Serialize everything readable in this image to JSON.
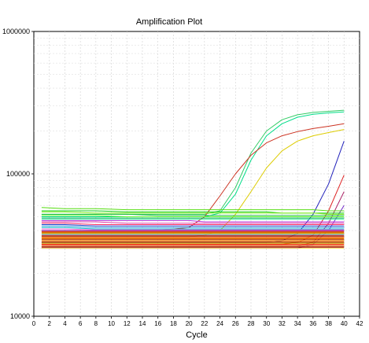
{
  "chart_data": {
    "type": "line",
    "title": "Amplification Plot",
    "xlabel": "Cycle",
    "ylabel": "",
    "x_ticks": [
      0,
      2,
      4,
      6,
      8,
      10,
      12,
      14,
      16,
      18,
      20,
      22,
      24,
      26,
      28,
      30,
      32,
      34,
      36,
      38,
      40,
      42
    ],
    "y_ticks": [
      10000,
      100000,
      1000000
    ],
    "y_tick_labels": [
      "10000",
      "100000",
      "1000000"
    ],
    "xlim": [
      0,
      42
    ],
    "ylim": [
      10000,
      1000000
    ],
    "y_scale": "log",
    "grid": true,
    "x": [
      1,
      4,
      8,
      12,
      16,
      20,
      22,
      24,
      26,
      28,
      30,
      32,
      34,
      36,
      38,
      40
    ],
    "series": [
      {
        "color": "#33cc66",
        "values": [
          52000,
          52000,
          52000,
          52000,
          52000,
          52000,
          52000,
          55000,
          80000,
          140000,
          200000,
          240000,
          260000,
          270000,
          275000,
          280000
        ]
      },
      {
        "color": "#00dd88",
        "values": [
          50000,
          50000,
          50000,
          50000,
          50000,
          50000,
          50000,
          53000,
          72000,
          125000,
          185000,
          225000,
          250000,
          262000,
          268000,
          272000
        ]
      },
      {
        "color": "#cc3322",
        "values": [
          40000,
          40000,
          40000,
          40000,
          40000,
          42000,
          50000,
          70000,
          100000,
          135000,
          165000,
          185000,
          198000,
          208000,
          216000,
          225000
        ]
      },
      {
        "color": "#ddcc00",
        "values": [
          36000,
          36000,
          36000,
          36000,
          36000,
          36000,
          37000,
          40000,
          52000,
          75000,
          110000,
          145000,
          170000,
          185000,
          195000,
          205000
        ]
      },
      {
        "color": "#2222bb",
        "values": [
          33000,
          33000,
          33000,
          33000,
          33000,
          33000,
          33000,
          33000,
          33000,
          33000,
          33000,
          34000,
          38000,
          52000,
          85000,
          170000
        ]
      },
      {
        "color": "#dd2222",
        "values": [
          32000,
          32000,
          32000,
          32000,
          32000,
          32000,
          32000,
          32000,
          32000,
          32000,
          32000,
          32000,
          33000,
          37000,
          55000,
          98000
        ]
      },
      {
        "color": "#aa2266",
        "values": [
          31000,
          31000,
          31000,
          31000,
          31000,
          31000,
          31000,
          31000,
          31000,
          31000,
          31000,
          31000,
          31000,
          33000,
          45000,
          75000
        ]
      },
      {
        "color": "#7733cc",
        "values": [
          30000,
          30000,
          30000,
          30000,
          30000,
          30000,
          30000,
          30000,
          30000,
          30000,
          30000,
          30000,
          30000,
          32000,
          40000,
          60000
        ]
      },
      {
        "color": "#55dd11",
        "values": [
          58000,
          57000,
          57000,
          56000,
          56000,
          56000,
          56000,
          56000,
          56000,
          56000,
          56000,
          56000,
          56000,
          56000,
          55000,
          55000
        ]
      },
      {
        "color": "#11cc11",
        "values": [
          55000,
          55000,
          55000,
          54000,
          54000,
          54000,
          54000,
          54000,
          54000,
          54000,
          54000,
          53000,
          53000,
          53000,
          53000,
          53000
        ]
      },
      {
        "color": "#88ee22",
        "values": [
          54000,
          54000,
          53000,
          53000,
          53000,
          53000,
          53000,
          53000,
          53000,
          53000,
          53000,
          53000,
          53000,
          53000,
          52000,
          52000
        ]
      },
      {
        "color": "#22bb44",
        "values": [
          52000,
          52000,
          52000,
          52000,
          51000,
          51000,
          51000,
          51000,
          51000,
          51000,
          51000,
          51000,
          51000,
          51000,
          51000,
          51000
        ]
      },
      {
        "color": "#66ff33",
        "values": [
          51000,
          51000,
          51000,
          50000,
          50000,
          50000,
          50000,
          50000,
          50000,
          50000,
          50000,
          50000,
          50000,
          50000,
          50000,
          50000
        ]
      },
      {
        "color": "#00aa55",
        "values": [
          49000,
          49000,
          49000,
          49000,
          49000,
          49000,
          49000,
          49000,
          49000,
          49000,
          49000,
          49000,
          49000,
          49000,
          49000,
          49000
        ]
      },
      {
        "color": "#33ee99",
        "values": [
          48000,
          48000,
          48000,
          48000,
          48000,
          48000,
          48000,
          48000,
          48000,
          48000,
          48000,
          48000,
          48000,
          48000,
          48000,
          48000
        ]
      },
      {
        "color": "#bb33dd",
        "values": [
          47000,
          47000,
          47000,
          47000,
          47000,
          47000,
          46000,
          46000,
          46000,
          46000,
          46000,
          46000,
          46000,
          46000,
          46000,
          46000
        ]
      },
      {
        "color": "#dd44aa",
        "values": [
          46000,
          46000,
          46000,
          45000,
          45000,
          45000,
          45000,
          45000,
          45000,
          45000,
          45000,
          45000,
          45000,
          45000,
          45000,
          45000
        ]
      },
      {
        "color": "#ff3366",
        "values": [
          45000,
          45000,
          44000,
          44000,
          44000,
          44000,
          44000,
          44000,
          44000,
          44000,
          44000,
          44000,
          44000,
          44000,
          44000,
          44000
        ]
      },
      {
        "color": "#2244cc",
        "values": [
          44000,
          44000,
          43000,
          43000,
          43000,
          43000,
          43000,
          43000,
          43000,
          43000,
          43000,
          43000,
          43000,
          43000,
          43000,
          43000
        ]
      },
      {
        "color": "#3399dd",
        "values": [
          43000,
          43000,
          42000,
          42000,
          42000,
          42000,
          42000,
          42000,
          42000,
          42000,
          42000,
          42000,
          42000,
          42000,
          42000,
          42000
        ]
      },
      {
        "color": "#00bbcc",
        "values": [
          42000,
          42000,
          41000,
          41000,
          41000,
          41000,
          41000,
          41000,
          41000,
          41000,
          41000,
          41000,
          41000,
          41000,
          41000,
          41000
        ]
      },
      {
        "color": "#ff66cc",
        "values": [
          41000,
          41000,
          40500,
          40500,
          40500,
          40500,
          40500,
          40500,
          40500,
          40500,
          40500,
          40500,
          40500,
          40500,
          40500,
          40500
        ]
      },
      {
        "color": "#8844cc",
        "values": [
          40000,
          40000,
          40000,
          40000,
          40000,
          40000,
          40000,
          40000,
          40000,
          40000,
          40000,
          40000,
          40000,
          40000,
          40000,
          40000
        ]
      },
      {
        "color": "#cc2244",
        "values": [
          39500,
          39500,
          39500,
          39500,
          39500,
          39500,
          39500,
          39500,
          39500,
          39500,
          39500,
          39500,
          39500,
          39500,
          39500,
          39500
        ]
      },
      {
        "color": "#ff8800",
        "values": [
          39000,
          39000,
          39000,
          39000,
          39000,
          39000,
          39000,
          39000,
          39000,
          39000,
          39000,
          39000,
          39000,
          39000,
          39000,
          39000
        ]
      },
      {
        "color": "#aa5500",
        "values": [
          38500,
          38500,
          38500,
          38500,
          38500,
          38500,
          38500,
          38500,
          38500,
          38500,
          38500,
          38500,
          38500,
          38500,
          38500,
          38500
        ]
      },
      {
        "color": "#ffcc00",
        "values": [
          38000,
          38000,
          38000,
          38000,
          38000,
          38000,
          38000,
          38000,
          38000,
          38000,
          38000,
          38000,
          38000,
          38000,
          38000,
          38000
        ]
      },
      {
        "color": "#33aaff",
        "values": [
          37500,
          37500,
          37500,
          37500,
          37500,
          37500,
          37500,
          37500,
          37500,
          37500,
          37500,
          37500,
          37500,
          37500,
          37500,
          37500
        ]
      },
      {
        "color": "#dd3311",
        "values": [
          37000,
          37000,
          37000,
          37000,
          37000,
          37000,
          37000,
          37000,
          37000,
          37000,
          37000,
          37000,
          37000,
          37000,
          37000,
          37000
        ]
      },
      {
        "color": "#880022",
        "values": [
          36500,
          36500,
          36500,
          36500,
          36500,
          36500,
          36500,
          36500,
          36500,
          36500,
          36500,
          36500,
          36500,
          36500,
          36500,
          36500
        ]
      },
      {
        "color": "#ee9922",
        "values": [
          36000,
          36000,
          36000,
          36000,
          36000,
          36000,
          36000,
          36000,
          36000,
          36000,
          36000,
          36000,
          36000,
          36000,
          36000,
          36000
        ]
      },
      {
        "color": "#ff4400",
        "values": [
          35500,
          35500,
          35500,
          35500,
          35500,
          35500,
          35500,
          35500,
          35500,
          35500,
          35500,
          35500,
          35500,
          35500,
          35500,
          35500
        ]
      },
      {
        "color": "#cc8800",
        "values": [
          35000,
          35000,
          35000,
          35000,
          35000,
          35000,
          35000,
          35000,
          35000,
          35000,
          35000,
          35000,
          35000,
          35000,
          35000,
          35000
        ]
      },
      {
        "color": "#aa1100",
        "values": [
          34500,
          34500,
          34500,
          34500,
          34500,
          34500,
          34500,
          34500,
          34500,
          34500,
          34500,
          34500,
          34500,
          34500,
          34500,
          34500
        ]
      },
      {
        "color": "#ffaa33",
        "values": [
          34000,
          34000,
          34000,
          34000,
          34000,
          34000,
          34000,
          34000,
          34000,
          34000,
          34000,
          34000,
          34000,
          34000,
          34000,
          34000
        ]
      },
      {
        "color": "#dd5500",
        "values": [
          33500,
          33500,
          33500,
          33500,
          33500,
          33500,
          33500,
          33500,
          33500,
          33500,
          33500,
          33500,
          33500,
          33500,
          33500,
          33500
        ]
      },
      {
        "color": "#993300",
        "values": [
          33000,
          33000,
          33000,
          33000,
          33000,
          33000,
          33000,
          33000,
          33000,
          33000,
          33000,
          33000,
          33000,
          33000,
          33000,
          33000
        ]
      },
      {
        "color": "#ccaa00",
        "values": [
          32500,
          32500,
          32500,
          32500,
          32500,
          32500,
          32500,
          32500,
          32500,
          32500,
          32500,
          32500,
          32500,
          32500,
          32500,
          32500
        ]
      },
      {
        "color": "#ee2200",
        "values": [
          32000,
          32000,
          32000,
          32000,
          32000,
          32000,
          32000,
          32000,
          32000,
          32000,
          32000,
          32000,
          32000,
          32000,
          32000,
          32000
        ]
      },
      {
        "color": "#ff7744",
        "values": [
          31500,
          31500,
          31500,
          31500,
          31500,
          31500,
          31500,
          31500,
          31500,
          31500,
          31500,
          31500,
          31500,
          31500,
          31500,
          31500
        ]
      },
      {
        "color": "#bb4400",
        "values": [
          31000,
          31000,
          31000,
          31000,
          31000,
          31000,
          31000,
          31000,
          31000,
          31000,
          31000,
          31000,
          31000,
          31000,
          31000,
          31000
        ]
      },
      {
        "color": "#990000",
        "values": [
          30500,
          30500,
          30500,
          30500,
          30500,
          30500,
          30500,
          30500,
          30500,
          30500,
          30500,
          30500,
          30500,
          30500,
          30500,
          30500
        ]
      },
      {
        "color": "#ffdd55",
        "values": [
          30000,
          30000,
          30000,
          30000,
          30000,
          30000,
          30000,
          30000,
          30000,
          30000,
          30000,
          30000,
          30000,
          30000,
          30000,
          30000
        ]
      }
    ]
  }
}
